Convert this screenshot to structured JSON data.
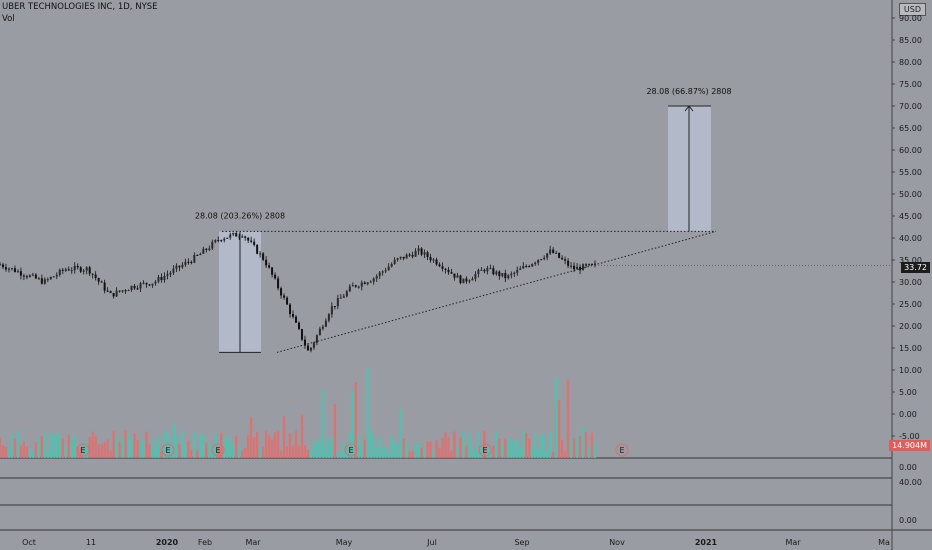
{
  "header": {
    "symbol_line": "UBER TECHNOLOGIES INC, 1D, NYSE",
    "indicator": "Vol",
    "currency": "USD"
  },
  "price_badge": {
    "value": "33.72",
    "color": "#1c1c1c"
  },
  "volume_badge": {
    "value": "14.904M",
    "color": "#e25c5c"
  },
  "colors": {
    "background": "#9a9ca3",
    "up_volume": "#4fc2b0",
    "down_volume": "#e07070",
    "measure_box": "#b6bfd0",
    "candle": "#111111"
  },
  "chart_data": [
    {
      "type": "candlestick",
      "title": "UBER TECHNOLOGIES INC, 1D, NYSE",
      "y_axis_ticks": [
        "90.00",
        "85.00",
        "80.00",
        "75.00",
        "70.00",
        "65.00",
        "60.00",
        "55.00",
        "50.00",
        "45.00",
        "40.00",
        "35.00",
        "30.00",
        "25.00",
        "20.00",
        "15.00",
        "10.00",
        "5.00",
        "0.00",
        "-5.00"
      ],
      "x_axis_ticks": [
        "Oct",
        "11",
        "2020",
        "Feb",
        "Mar",
        "May",
        "Jul",
        "Sep",
        "Nov",
        "2021",
        "Mar",
        "Ma"
      ],
      "ylim": [
        -8,
        92
      ],
      "last_price": 33.72,
      "approx_close_path": [
        {
          "t": "Sep 2019",
          "y": 34
        },
        {
          "t": "Oct 2019",
          "y": 32
        },
        {
          "t": "Oct 2019",
          "y": 30
        },
        {
          "t": "Nov 2019",
          "y": 33
        },
        {
          "t": "Nov 2019",
          "y": 33
        },
        {
          "t": "Nov 2019",
          "y": 27
        },
        {
          "t": "Dec 2019",
          "y": 29
        },
        {
          "t": "Dec 2019",
          "y": 30
        },
        {
          "t": "Jan 2020",
          "y": 33
        },
        {
          "t": "Jan 2020",
          "y": 36
        },
        {
          "t": "Feb 2020",
          "y": 40
        },
        {
          "t": "Feb 2020",
          "y": 41
        },
        {
          "t": "Mar 2020",
          "y": 35
        },
        {
          "t": "Mar 2020",
          "y": 25
        },
        {
          "t": "Mar 2020",
          "y": 14
        },
        {
          "t": "Apr 2020",
          "y": 24
        },
        {
          "t": "Apr 2020",
          "y": 29
        },
        {
          "t": "May 2020",
          "y": 31
        },
        {
          "t": "May 2020",
          "y": 35
        },
        {
          "t": "Jun 2020",
          "y": 37
        },
        {
          "t": "Jun 2020",
          "y": 34
        },
        {
          "t": "Jul 2020",
          "y": 30
        },
        {
          "t": "Jul 2020",
          "y": 33
        },
        {
          "t": "Aug 2020",
          "y": 31
        },
        {
          "t": "Aug 2020",
          "y": 34
        },
        {
          "t": "Sep 2020",
          "y": 37
        },
        {
          "t": "Sep 2020",
          "y": 33
        },
        {
          "t": "Oct 2020",
          "y": 33.72
        }
      ],
      "annotations": [
        {
          "text": "28.08 (203.26%) 2808",
          "from": 14,
          "to": 42
        },
        {
          "text": "28.08 (66.87%) 2808",
          "from": 42,
          "to": 70
        }
      ],
      "trendlines": [
        {
          "style": "dotted",
          "from": {
            "t": "Feb 2020",
            "y": 41.5
          },
          "to": {
            "t": "Jan 2021",
            "y": 41.5
          }
        },
        {
          "style": "dotted",
          "from": {
            "t": "Mar 2020",
            "y": 14
          },
          "to": {
            "t": "Jan 2021",
            "y": 41.5
          }
        }
      ]
    },
    {
      "type": "bar",
      "title": "Vol",
      "note": "volume histogram drawn under price pane",
      "last_value": "14.904M"
    },
    {
      "type": "line",
      "title": "",
      "y_axis_ticks": [
        "0.00"
      ]
    },
    {
      "type": "line",
      "title": "",
      "y_axis_ticks": [
        "40.00",
        "0.00"
      ]
    }
  ],
  "event_markers": [
    "E",
    "E",
    "E",
    "E",
    "E",
    "E"
  ]
}
